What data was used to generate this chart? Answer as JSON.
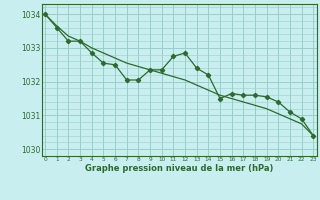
{
  "xlabel": "Graphe pression niveau de la mer (hPa)",
  "background_color": "#c8eef0",
  "grid_color": "#98cfc8",
  "line_color": "#2d6b2d",
  "x": [
    0,
    1,
    2,
    3,
    4,
    5,
    6,
    7,
    8,
    9,
    10,
    11,
    12,
    13,
    14,
    15,
    16,
    17,
    18,
    19,
    20,
    21,
    22,
    23
  ],
  "y_main": [
    1034.0,
    1033.6,
    1033.2,
    1033.2,
    1032.85,
    1032.55,
    1032.5,
    1032.05,
    1032.05,
    1032.35,
    1032.35,
    1032.75,
    1032.85,
    1032.4,
    1032.2,
    1031.5,
    1031.65,
    1031.6,
    1031.6,
    1031.55,
    1031.4,
    1031.1,
    1030.9,
    1030.4
  ],
  "y_smooth": [
    1034.0,
    1033.65,
    1033.35,
    1033.2,
    1033.0,
    1032.85,
    1032.7,
    1032.55,
    1032.45,
    1032.35,
    1032.25,
    1032.15,
    1032.05,
    1031.9,
    1031.75,
    1031.6,
    1031.5,
    1031.4,
    1031.3,
    1031.2,
    1031.05,
    1030.9,
    1030.75,
    1030.4
  ],
  "ylim": [
    1029.8,
    1034.3
  ],
  "yticks": [
    1030,
    1031,
    1032,
    1033,
    1034
  ],
  "xlim": [
    -0.3,
    23.3
  ],
  "xticks": [
    0,
    1,
    2,
    3,
    4,
    5,
    6,
    7,
    8,
    9,
    10,
    11,
    12,
    13,
    14,
    15,
    16,
    17,
    18,
    19,
    20,
    21,
    22,
    23
  ]
}
